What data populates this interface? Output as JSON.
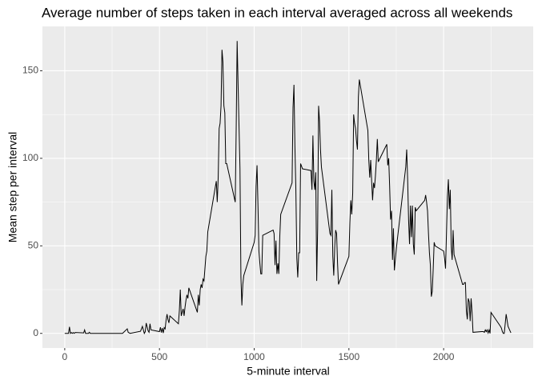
{
  "chart_data": {
    "type": "line",
    "title": "Average number of steps taken in each interval averaged across all weekends",
    "x_label": "5-minute interval",
    "y_label": "Mean step per interval",
    "xlim": [
      -117.75,
      2472.75
    ],
    "xticks": [
      0,
      500,
      1000,
      1500,
      2000
    ],
    "x_minor_ticks": [
      250,
      750,
      1250,
      1750,
      2250
    ],
    "ylim": [
      -8.35,
      175.35
    ],
    "yticks": [
      0,
      50,
      100,
      150
    ],
    "y_minor_ticks": [
      25,
      75,
      125
    ],
    "grid": true,
    "x": [
      0,
      5,
      10,
      15,
      20,
      25,
      30,
      35,
      40,
      45,
      50,
      55,
      100,
      105,
      110,
      115,
      120,
      125,
      130,
      135,
      140,
      145,
      150,
      155,
      200,
      230,
      300,
      305,
      330,
      335,
      345,
      400,
      410,
      420,
      425,
      430,
      440,
      445,
      450,
      455,
      500,
      505,
      510,
      515,
      520,
      525,
      530,
      535,
      540,
      545,
      550,
      555,
      600,
      605,
      610,
      615,
      620,
      625,
      630,
      635,
      640,
      645,
      650,
      655,
      700,
      705,
      710,
      715,
      720,
      725,
      730,
      735,
      740,
      745,
      750,
      755,
      800,
      805,
      810,
      815,
      820,
      825,
      830,
      835,
      840,
      845,
      850,
      855,
      900,
      905,
      910,
      915,
      920,
      925,
      930,
      935,
      940,
      945,
      1000,
      1005,
      1010,
      1015,
      1020,
      1025,
      1030,
      1035,
      1040,
      1045,
      1100,
      1105,
      1110,
      1115,
      1120,
      1125,
      1130,
      1135,
      1140,
      1200,
      1205,
      1210,
      1215,
      1220,
      1225,
      1230,
      1235,
      1240,
      1245,
      1255,
      1300,
      1305,
      1310,
      1315,
      1320,
      1325,
      1330,
      1335,
      1340,
      1345,
      1350,
      1355,
      1400,
      1405,
      1410,
      1415,
      1420,
      1425,
      1430,
      1435,
      1440,
      1445,
      1500,
      1505,
      1510,
      1515,
      1520,
      1525,
      1530,
      1535,
      1540,
      1545,
      1550,
      1555,
      1600,
      1605,
      1610,
      1615,
      1620,
      1625,
      1630,
      1635,
      1640,
      1645,
      1650,
      1655,
      1700,
      1705,
      1710,
      1715,
      1720,
      1725,
      1730,
      1735,
      1740,
      1745,
      1750,
      1755,
      1800,
      1805,
      1810,
      1815,
      1820,
      1825,
      1830,
      1835,
      1840,
      1845,
      1850,
      1855,
      1900,
      1905,
      1910,
      1915,
      1920,
      1925,
      1930,
      1935,
      1940,
      1945,
      1950,
      1955,
      2000,
      2005,
      2010,
      2015,
      2020,
      2025,
      2030,
      2035,
      2040,
      2045,
      2050,
      2055,
      2100,
      2105,
      2110,
      2115,
      2120,
      2125,
      2130,
      2135,
      2140,
      2145,
      2150,
      2155,
      2200,
      2205,
      2210,
      2215,
      2220,
      2225,
      2230,
      2235,
      2240,
      2245,
      2250,
      2300,
      2305,
      2310,
      2315,
      2320,
      2330,
      2340,
      2355
    ],
    "series": [
      {
        "color": "#000000",
        "values": [
          0,
          0,
          0,
          0,
          0,
          3.7,
          0,
          0.5,
          0,
          0.5,
          0,
          0.5,
          0.3,
          2,
          0,
          0,
          0,
          0,
          0.6,
          0,
          0,
          0,
          0,
          0,
          0,
          0,
          0,
          0,
          2.6,
          0.6,
          0,
          1.2,
          4,
          0,
          1,
          5.9,
          1.5,
          0.6,
          5.5,
          2,
          1,
          3.5,
          0.5,
          3,
          0.2,
          3.3,
          2.6,
          7.7,
          11,
          7.8,
          6,
          10,
          5.5,
          13,
          25,
          10,
          12,
          14,
          10,
          15,
          19,
          22,
          20,
          26,
          12,
          22,
          16,
          25,
          28,
          26,
          31,
          30,
          37,
          44,
          47,
          58,
          87,
          75,
          89,
          117,
          120,
          130,
          162,
          155,
          130,
          126,
          97,
          97,
          75,
          117,
          167,
          142,
          118,
          94,
          32,
          16,
          28,
          33,
          52,
          56,
          84,
          96,
          73,
          47,
          40,
          34,
          34,
          56,
          59,
          57,
          39,
          53,
          34,
          40,
          34,
          55,
          68,
          86,
          129,
          142,
          107,
          82,
          43,
          32,
          46,
          46,
          97,
          94,
          93,
          82,
          113,
          87,
          82,
          92,
          30,
          60,
          130,
          121,
          105,
          95,
          57,
          56,
          82,
          44,
          33,
          49,
          59,
          57,
          40,
          28,
          44,
          63,
          76,
          68,
          80,
          125,
          120,
          117,
          110,
          105,
          135,
          145,
          116,
          99,
          89,
          99,
          87,
          76,
          86,
          83,
          90,
          99,
          111,
          98,
          108,
          96,
          100,
          84,
          65,
          70,
          42,
          60,
          36,
          42,
          48,
          53,
          95,
          105,
          88,
          65,
          51,
          73,
          55,
          73,
          51,
          45,
          72,
          70,
          76,
          79,
          75,
          70,
          57,
          46,
          39,
          21,
          24,
          37,
          52,
          50,
          47,
          43,
          37,
          57,
          78,
          88,
          71,
          82,
          50,
          42,
          59,
          45,
          28,
          28,
          29,
          29,
          13,
          8,
          20,
          18,
          7,
          20,
          12,
          0.6,
          1,
          1,
          1,
          0.6,
          2,
          1,
          2,
          0.2,
          2,
          0,
          12,
          4,
          3,
          1,
          0,
          0,
          11,
          4,
          0.3
        ]
      }
    ]
  }
}
